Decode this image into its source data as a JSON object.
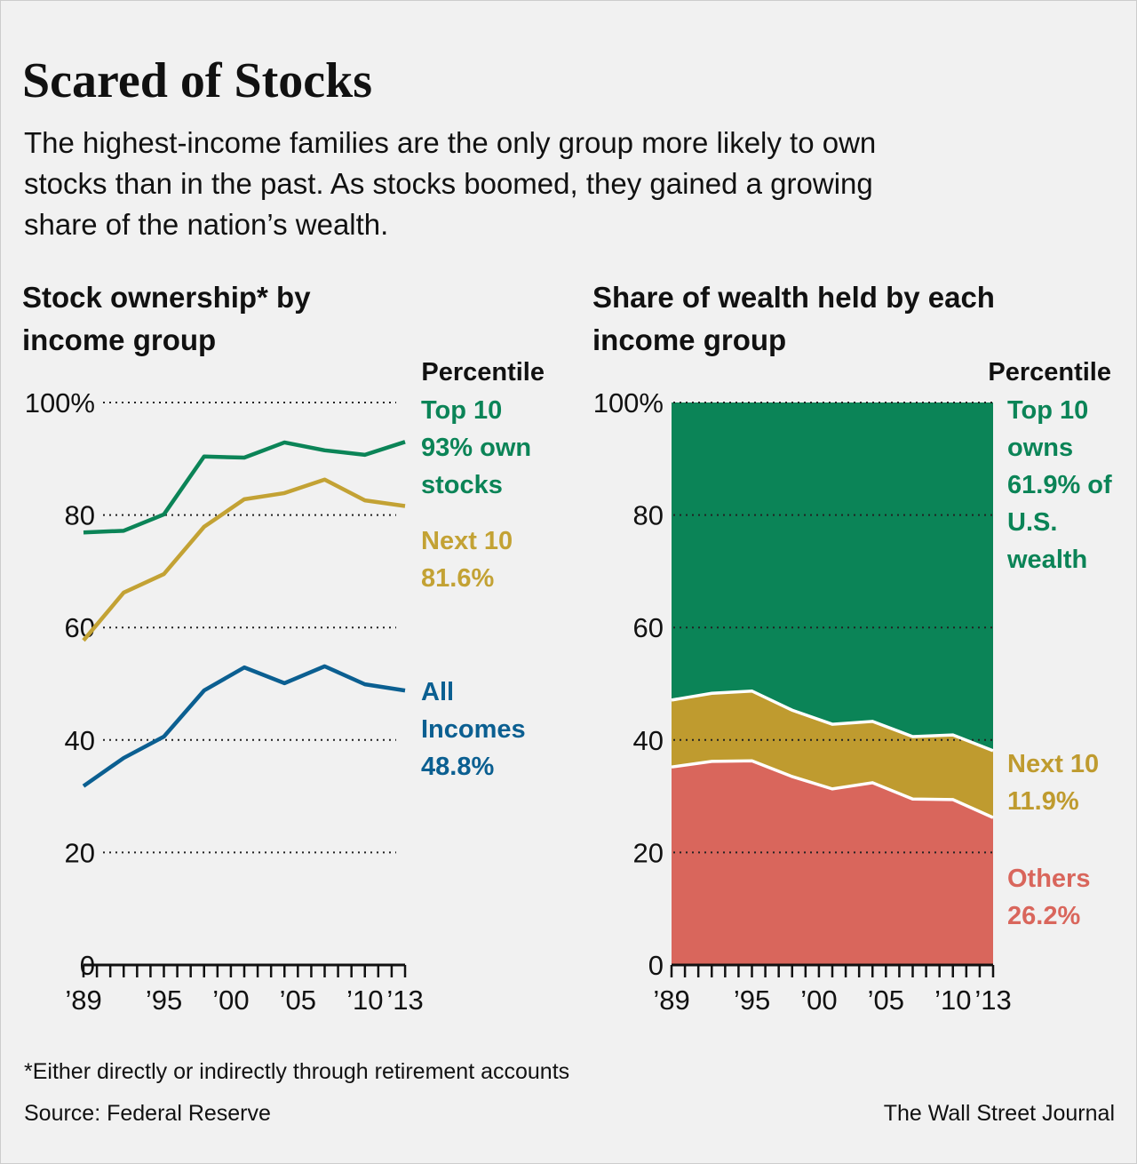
{
  "header": {
    "title": "Scared of Stocks",
    "subtitle_lines": [
      "The highest-income families are the only group more likely to own",
      "stocks than in the past. As stocks boomed, they gained a growing",
      "share of the nation’s wealth."
    ]
  },
  "chart_data": [
    {
      "type": "line",
      "title_lines": [
        "Stock ownership* by",
        "income group"
      ],
      "legend_title": "Percentile",
      "x": [
        1989,
        1992,
        1995,
        1998,
        2001,
        2004,
        2007,
        2010,
        2013
      ],
      "xlim": [
        1989,
        2013
      ],
      "xticks": [
        {
          "value": 1989,
          "label": "’89"
        },
        {
          "value": 1990,
          "label": null
        },
        {
          "value": 1991,
          "label": null
        },
        {
          "value": 1992,
          "label": null
        },
        {
          "value": 1993,
          "label": null
        },
        {
          "value": 1994,
          "label": null
        },
        {
          "value": 1995,
          "label": "’95"
        },
        {
          "value": 1996,
          "label": null
        },
        {
          "value": 1997,
          "label": null
        },
        {
          "value": 1998,
          "label": null
        },
        {
          "value": 1999,
          "label": null
        },
        {
          "value": 2000,
          "label": "’00"
        },
        {
          "value": 2001,
          "label": null
        },
        {
          "value": 2002,
          "label": null
        },
        {
          "value": 2003,
          "label": null
        },
        {
          "value": 2004,
          "label": null
        },
        {
          "value": 2005,
          "label": "’05"
        },
        {
          "value": 2006,
          "label": null
        },
        {
          "value": 2007,
          "label": null
        },
        {
          "value": 2008,
          "label": null
        },
        {
          "value": 2009,
          "label": null
        },
        {
          "value": 2010,
          "label": "’10"
        },
        {
          "value": 2011,
          "label": null
        },
        {
          "value": 2012,
          "label": null
        },
        {
          "value": 2013,
          "label": "’13"
        }
      ],
      "ylim": [
        0,
        100
      ],
      "yticks": [
        0,
        20,
        40,
        60,
        80,
        {
          "value": 100,
          "label": "100%"
        }
      ],
      "grid": true,
      "series": [
        {
          "name": "Top 10",
          "color": "#0b8457",
          "values": [
            76.9,
            77.2,
            80.1,
            90.4,
            90.2,
            92.9,
            91.5,
            90.7,
            93
          ],
          "label": "93% own stocks"
        },
        {
          "name": "Next 10",
          "color": "#c3a234",
          "values": [
            57.7,
            66.2,
            69.5,
            77.9,
            82.8,
            83.9,
            86.3,
            82.6,
            81.6
          ],
          "label": "81.6%"
        },
        {
          "name": "All Incomes",
          "color": "#0b5f91",
          "values": [
            31.8,
            36.8,
            40.6,
            48.8,
            52.9,
            50.1,
            53.1,
            49.9,
            48.8
          ],
          "label": "48.8%"
        }
      ]
    },
    {
      "type": "area",
      "stacked": true,
      "title_lines": [
        "Share of wealth held by each",
        "income group"
      ],
      "legend_title": "Percentile",
      "x": [
        1989,
        1992,
        1995,
        1998,
        2001,
        2004,
        2007,
        2010,
        2013
      ],
      "xlim": [
        1989,
        2013
      ],
      "xticks": [
        {
          "value": 1989,
          "label": "’89"
        },
        {
          "value": 1990,
          "label": null
        },
        {
          "value": 1991,
          "label": null
        },
        {
          "value": 1992,
          "label": null
        },
        {
          "value": 1993,
          "label": null
        },
        {
          "value": 1994,
          "label": null
        },
        {
          "value": 1995,
          "label": "’95"
        },
        {
          "value": 1996,
          "label": null
        },
        {
          "value": 1997,
          "label": null
        },
        {
          "value": 1998,
          "label": null
        },
        {
          "value": 1999,
          "label": null
        },
        {
          "value": 2000,
          "label": "’00"
        },
        {
          "value": 2001,
          "label": null
        },
        {
          "value": 2002,
          "label": null
        },
        {
          "value": 2003,
          "label": null
        },
        {
          "value": 2004,
          "label": null
        },
        {
          "value": 2005,
          "label": "’05"
        },
        {
          "value": 2006,
          "label": null
        },
        {
          "value": 2007,
          "label": null
        },
        {
          "value": 2008,
          "label": null
        },
        {
          "value": 2009,
          "label": null
        },
        {
          "value": 2010,
          "label": "’10"
        },
        {
          "value": 2011,
          "label": null
        },
        {
          "value": 2012,
          "label": null
        },
        {
          "value": 2013,
          "label": "’13"
        }
      ],
      "ylim": [
        0,
        100
      ],
      "yticks": [
        0,
        20,
        40,
        60,
        80,
        {
          "value": 100,
          "label": "100%"
        }
      ],
      "grid": true,
      "series": [
        {
          "name": "Others",
          "color": "#d9665c",
          "values": [
            35.2,
            36.2,
            36.3,
            33.5,
            31.3,
            32.4,
            29.5,
            29.4,
            26.2
          ],
          "label": "26.2%"
        },
        {
          "name": "Next 10",
          "color": "#bf9b2f",
          "values": [
            11.9,
            12.1,
            12.4,
            11.8,
            11.5,
            10.9,
            11.1,
            11.5,
            11.9
          ],
          "label": "11.9%"
        },
        {
          "name": "Top 10",
          "color": "#0b8457",
          "values": [
            52.9,
            51.7,
            51.3,
            54.7,
            57.2,
            56.7,
            59.4,
            59.1,
            61.9
          ],
          "label": "owns 61.9% of U.S. wealth"
        }
      ]
    }
  ],
  "footer": {
    "note": "*Either directly or indirectly through retirement accounts",
    "source": "Source: Federal Reserve",
    "credit": "The Wall Street Journal"
  }
}
